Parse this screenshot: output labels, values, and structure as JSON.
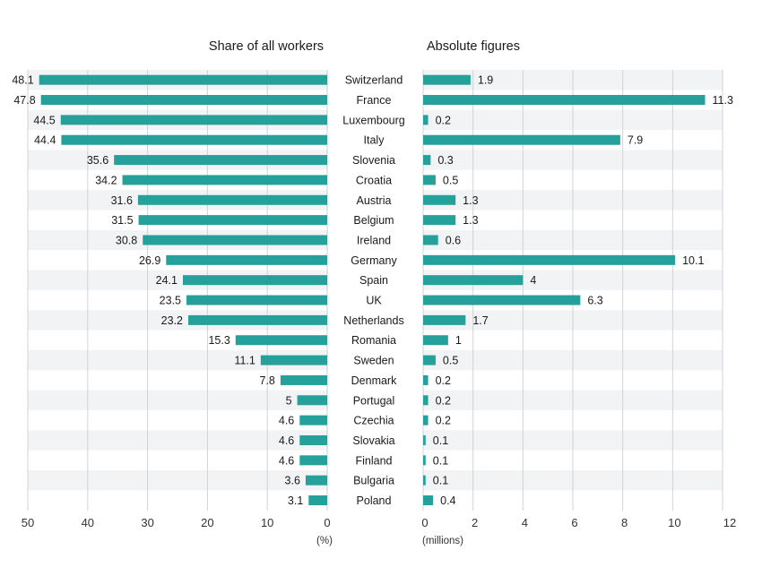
{
  "chart_data": {
    "type": "bar",
    "orientation": "horizontal",
    "categories": [
      "Switzerland",
      "France",
      "Luxembourg",
      "Italy",
      "Slovenia",
      "Croatia",
      "Austria",
      "Belgium",
      "Ireland",
      "Germany",
      "Spain",
      "UK",
      "Netherlands",
      "Romania",
      "Sweden",
      "Denmark",
      "Portugal",
      "Czechia",
      "Slovakia",
      "Finland",
      "Bulgaria",
      "Poland"
    ],
    "panels": [
      {
        "title": "Share of all workers",
        "unit_label": "(%)",
        "values": [
          48.1,
          47.8,
          44.5,
          44.4,
          35.6,
          34.2,
          31.6,
          31.5,
          30.8,
          26.9,
          24.1,
          23.5,
          23.2,
          15.3,
          11.1,
          7.8,
          5,
          4.6,
          4.6,
          4.6,
          3.6,
          3.1
        ],
        "value_labels": [
          "48.1",
          "47.8",
          "44.5",
          "44.4",
          "35.6",
          "34.2",
          "31.6",
          "31.5",
          "30.8",
          "26.9",
          "24.1",
          "23.5",
          "23.2",
          "15.3",
          "11.1",
          "7.8",
          "5",
          "4.6",
          "4.6",
          "4.6",
          "3.6",
          "3.1"
        ],
        "xlim": [
          0,
          50
        ],
        "ticks": [
          50,
          40,
          30,
          20,
          10,
          0
        ],
        "reversed": true
      },
      {
        "title": "Absolute figures",
        "unit_label": "(millions)",
        "values": [
          1.9,
          11.3,
          0.2,
          7.9,
          0.3,
          0.5,
          1.3,
          1.3,
          0.6,
          10.1,
          4,
          6.3,
          1.7,
          1,
          0.5,
          0.2,
          0.2,
          0.2,
          0.1,
          0.1,
          0.1,
          0.4
        ],
        "value_labels": [
          "1.9",
          "11.3",
          "0.2",
          "7.9",
          "0.3",
          "0.5",
          "1.3",
          "1.3",
          "0.6",
          "10.1",
          "4",
          "6.3",
          "1.7",
          "1",
          "0.5",
          "0.2",
          "0.2",
          "0.2",
          "0.1",
          "0.1",
          "0.1",
          "0.4"
        ],
        "xlim": [
          0,
          12
        ],
        "ticks": [
          0,
          2,
          4,
          6,
          8,
          10,
          12
        ],
        "reversed": false
      }
    ],
    "grid": true,
    "legend": "none"
  },
  "colors": {
    "bar": "#26a09a",
    "stripe": "#f1f3f5",
    "grid": "#cfd3d7",
    "text": "#1a1a1a"
  }
}
